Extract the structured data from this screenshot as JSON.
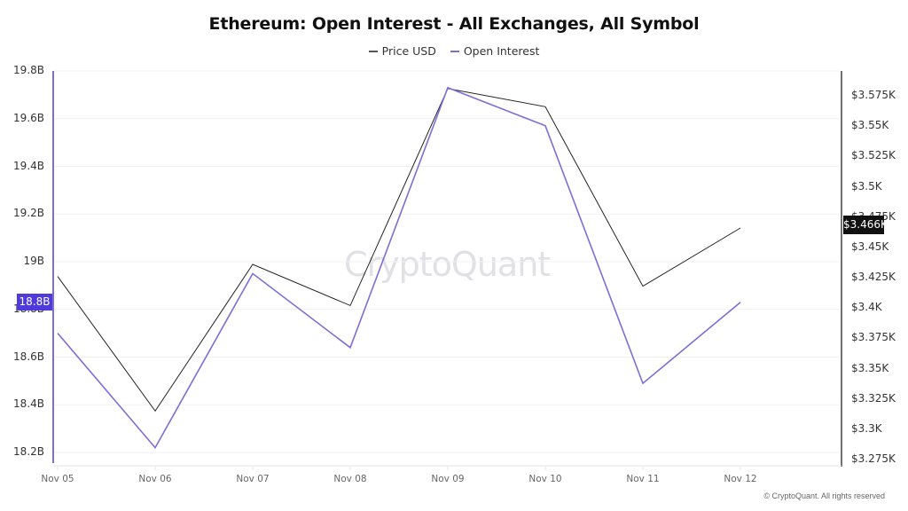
{
  "chart_data": {
    "type": "line",
    "title": "Ethereum: Open Interest - All Exchanges, All Symbol",
    "x": [
      "Nov 05",
      "Nov 06",
      "Nov 07",
      "Nov 08",
      "Nov 09",
      "Nov 10",
      "Nov 11",
      "Nov 12"
    ],
    "series": [
      {
        "name": "Price USD",
        "axis": "right",
        "color": "#222222",
        "values": [
          3.426,
          3.315,
          3.436,
          3.402,
          3.581,
          3.566,
          3.418,
          3.466
        ],
        "unit": "K USD"
      },
      {
        "name": "Open Interest",
        "axis": "left",
        "color": "#7b6fd6",
        "values": [
          18.7,
          18.22,
          18.95,
          18.64,
          19.73,
          19.57,
          18.49,
          18.83
        ],
        "unit": "B"
      }
    ],
    "left_axis": {
      "ticks": [
        "19.8B",
        "19.6B",
        "19.4B",
        "19.2B",
        "19B",
        "18.8B",
        "18.6B",
        "18.4B",
        "18.2B"
      ],
      "ylim": [
        18.2,
        19.8
      ]
    },
    "right_axis": {
      "ticks": [
        "$3.575K",
        "$3.55K",
        "$3.525K",
        "$3.5K",
        "$3.475K",
        "$3.45K",
        "$3.425K",
        "$3.4K",
        "$3.375K",
        "$3.35K",
        "$3.325K",
        "$3.3K",
        "$3.275K"
      ],
      "ylim": [
        3.275,
        3.58
      ]
    },
    "legend_position": "top",
    "grid": true
  },
  "header": {
    "title": "Ethereum: Open Interest - All Exchanges, All Symbol"
  },
  "legend": [
    {
      "label": "Price USD",
      "color": "#555555"
    },
    {
      "label": "Open Interest",
      "color": "#7b6fd6"
    }
  ],
  "badges": {
    "left_current": "18.8B",
    "right_current": "$3.466K"
  },
  "watermark": "CryptoQuant",
  "footer": {
    "copyright": "© CryptoQuant. All rights reserved"
  }
}
